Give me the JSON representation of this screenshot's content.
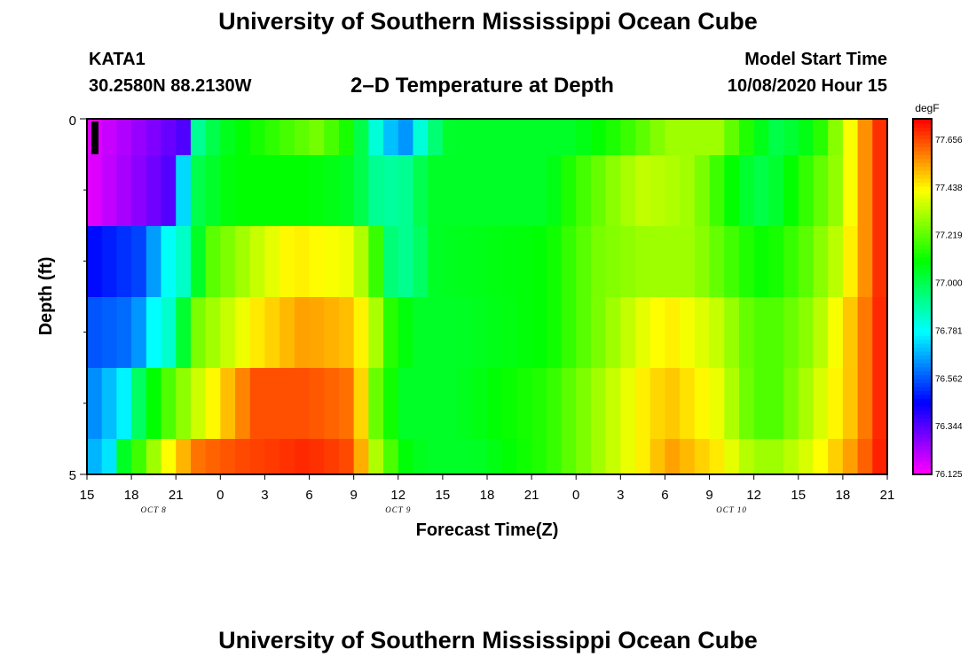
{
  "header": {
    "title": "University of Southern Mississippi Ocean Cube",
    "station_id": "KATA1",
    "coords": "30.2580N 88.2130W",
    "plot_title": "2–D Temperature at Depth",
    "model_start_label": "Model Start Time",
    "model_start_time": "10/08/2020 Hour 15"
  },
  "footer": {
    "title": "University of Southern Mississippi Ocean Cube"
  },
  "chart_data": {
    "type": "heatmap",
    "xlabel": "Forecast Time(Z)",
    "ylabel": "Depth (ft)",
    "x_tick_labels": [
      "15",
      "18",
      "21",
      "0",
      "3",
      "6",
      "9",
      "12",
      "15",
      "18",
      "21",
      "0",
      "3",
      "6",
      "9",
      "12",
      "15",
      "18",
      "21"
    ],
    "date_labels": [
      {
        "text": "OCT 8",
        "tick_index": 1.5
      },
      {
        "text": "OCT 9",
        "tick_index": 7
      },
      {
        "text": "OCT 10",
        "tick_index": 14.5
      }
    ],
    "y_tick_labels": [
      "0",
      "5"
    ],
    "ylim": [
      0,
      5
    ],
    "colorbar": {
      "units": "degF",
      "tick_labels": [
        "77.656",
        "77.438",
        "77.219",
        "77.000",
        "76.781",
        "76.562",
        "76.344",
        "76.125"
      ],
      "range": [
        76.125,
        77.75
      ]
    },
    "x_start": "10/08/2020 15Z",
    "x_end": "10/10/2020 21Z",
    "time_step_hours": 1,
    "depth_rows_ft": [
      0,
      1,
      2,
      3,
      4,
      5
    ],
    "row_keyframes": [
      [
        [
          0,
          76.15
        ],
        [
          8,
          76.35
        ],
        [
          9,
          76.9
        ],
        [
          11,
          77.05
        ],
        [
          15,
          77.15
        ],
        [
          19,
          77.25
        ],
        [
          22,
          77.1
        ],
        [
          24,
          76.8
        ],
        [
          26,
          76.6
        ],
        [
          28,
          76.9
        ],
        [
          30,
          77.05
        ],
        [
          40,
          77.05
        ],
        [
          44,
          77.15
        ],
        [
          48,
          77.3
        ],
        [
          52,
          77.3
        ],
        [
          55,
          77.1
        ],
        [
          57,
          77.0
        ],
        [
          60,
          77.1
        ],
        [
          62,
          77.3
        ],
        [
          64,
          77.55
        ],
        [
          66,
          77.75
        ]
      ],
      [
        [
          0,
          76.15
        ],
        [
          7,
          76.35
        ],
        [
          8,
          76.75
        ],
        [
          9,
          77.0
        ],
        [
          12,
          77.1
        ],
        [
          18,
          77.1
        ],
        [
          22,
          77.05
        ],
        [
          24,
          76.9
        ],
        [
          26,
          76.9
        ],
        [
          27,
          76.95
        ],
        [
          28,
          77.05
        ],
        [
          38,
          77.05
        ],
        [
          40,
          77.15
        ],
        [
          44,
          77.3
        ],
        [
          46,
          77.35
        ],
        [
          50,
          77.3
        ],
        [
          54,
          77.05
        ],
        [
          56,
          77.0
        ],
        [
          59,
          77.15
        ],
        [
          62,
          77.3
        ],
        [
          64,
          77.55
        ],
        [
          66,
          77.75
        ]
      ],
      [
        [
          0,
          76.45
        ],
        [
          5,
          76.55
        ],
        [
          6,
          76.75
        ],
        [
          8,
          76.85
        ],
        [
          10,
          77.2
        ],
        [
          14,
          77.35
        ],
        [
          17,
          77.45
        ],
        [
          22,
          77.4
        ],
        [
          24,
          77.15
        ],
        [
          25,
          76.95
        ],
        [
          27,
          76.9
        ],
        [
          28,
          77.05
        ],
        [
          38,
          77.1
        ],
        [
          42,
          77.25
        ],
        [
          46,
          77.3
        ],
        [
          50,
          77.3
        ],
        [
          54,
          77.15
        ],
        [
          56,
          77.1
        ],
        [
          59,
          77.2
        ],
        [
          62,
          77.35
        ],
        [
          64,
          77.55
        ],
        [
          66,
          77.75
        ]
      ],
      [
        [
          0,
          76.55
        ],
        [
          4,
          76.6
        ],
        [
          5,
          76.75
        ],
        [
          7,
          76.85
        ],
        [
          9,
          77.25
        ],
        [
          14,
          77.45
        ],
        [
          18,
          77.55
        ],
        [
          22,
          77.5
        ],
        [
          24,
          77.3
        ],
        [
          25,
          77.15
        ],
        [
          27,
          77.05
        ],
        [
          30,
          77.05
        ],
        [
          38,
          77.1
        ],
        [
          42,
          77.25
        ],
        [
          46,
          77.4
        ],
        [
          48,
          77.45
        ],
        [
          52,
          77.35
        ],
        [
          55,
          77.2
        ],
        [
          57,
          77.2
        ],
        [
          60,
          77.3
        ],
        [
          63,
          77.5
        ],
        [
          66,
          77.75
        ]
      ],
      [
        [
          0,
          76.6
        ],
        [
          3,
          76.75
        ],
        [
          4,
          76.95
        ],
        [
          6,
          77.15
        ],
        [
          9,
          77.35
        ],
        [
          14,
          77.65
        ],
        [
          18,
          77.65
        ],
        [
          22,
          77.6
        ],
        [
          23,
          77.4
        ],
        [
          24,
          77.2
        ],
        [
          26,
          77.05
        ],
        [
          30,
          77.05
        ],
        [
          38,
          77.15
        ],
        [
          42,
          77.3
        ],
        [
          46,
          77.45
        ],
        [
          48,
          77.5
        ],
        [
          52,
          77.4
        ],
        [
          55,
          77.2
        ],
        [
          57,
          77.2
        ],
        [
          60,
          77.35
        ],
        [
          63,
          77.5
        ],
        [
          66,
          77.75
        ]
      ],
      [
        [
          0,
          76.65
        ],
        [
          2,
          76.75
        ],
        [
          3,
          77.05
        ],
        [
          5,
          77.25
        ],
        [
          7,
          77.45
        ],
        [
          9,
          77.6
        ],
        [
          12,
          77.65
        ],
        [
          18,
          77.7
        ],
        [
          22,
          77.65
        ],
        [
          23,
          77.45
        ],
        [
          24,
          77.3
        ],
        [
          26,
          77.1
        ],
        [
          28,
          77.05
        ],
        [
          32,
          77.05
        ],
        [
          38,
          77.15
        ],
        [
          42,
          77.3
        ],
        [
          46,
          77.45
        ],
        [
          48,
          77.55
        ],
        [
          52,
          77.45
        ],
        [
          55,
          77.3
        ],
        [
          57,
          77.3
        ],
        [
          60,
          77.4
        ],
        [
          63,
          77.55
        ],
        [
          66,
          77.75
        ]
      ]
    ]
  }
}
